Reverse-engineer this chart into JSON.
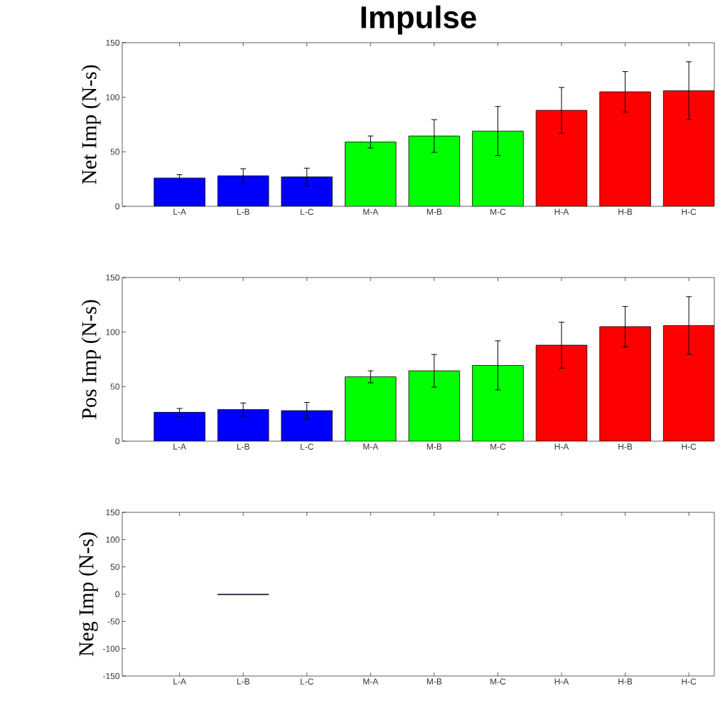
{
  "chart_data": [
    {
      "type": "bar",
      "title": "Impulse",
      "ylabel": "Net Imp (N-s)",
      "categories": [
        "L-A",
        "L-B",
        "L-C",
        "M-A",
        "M-B",
        "M-C",
        "H-A",
        "H-B",
        "H-C"
      ],
      "values": [
        26,
        28,
        27,
        59,
        64.5,
        69,
        88,
        105,
        106
      ],
      "errors": [
        3,
        6.5,
        8,
        5.5,
        15,
        22.5,
        21,
        18.5,
        26.5
      ],
      "colors": [
        "#0000ff",
        "#0000ff",
        "#0000ff",
        "#00ff00",
        "#00ff00",
        "#00ff00",
        "#ff0000",
        "#ff0000",
        "#ff0000"
      ],
      "ylim": [
        0,
        150
      ],
      "yticks": [
        0,
        50,
        100,
        150
      ]
    },
    {
      "type": "bar",
      "ylabel": "Pos Imp (N-s)",
      "categories": [
        "L-A",
        "L-B",
        "L-C",
        "M-A",
        "M-B",
        "M-C",
        "H-A",
        "H-B",
        "H-C"
      ],
      "values": [
        26.5,
        29,
        28,
        59,
        64.5,
        69.5,
        88,
        105,
        106
      ],
      "errors": [
        3.5,
        6,
        7.5,
        5.5,
        15,
        22.5,
        21,
        18.5,
        26.5
      ],
      "colors": [
        "#0000ff",
        "#0000ff",
        "#0000ff",
        "#00ff00",
        "#00ff00",
        "#00ff00",
        "#ff0000",
        "#ff0000",
        "#ff0000"
      ],
      "ylim": [
        0,
        150
      ],
      "yticks": [
        0,
        50,
        100,
        150
      ]
    },
    {
      "type": "bar",
      "ylabel": "Neg Imp (N-s)",
      "categories": [
        "L-A",
        "L-B",
        "L-C",
        "M-A",
        "M-B",
        "M-C",
        "H-A",
        "H-B",
        "H-C"
      ],
      "values": [
        0,
        -1,
        0,
        0,
        0,
        0,
        0,
        0,
        0
      ],
      "colors": [
        "#0000ff",
        "#0000ff",
        "#0000ff",
        "#00ff00",
        "#00ff00",
        "#00ff00",
        "#ff0000",
        "#ff0000",
        "#ff0000"
      ],
      "ylim": [
        -150,
        150
      ],
      "yticks": [
        -150,
        -100,
        -50,
        0,
        50,
        100,
        150
      ]
    }
  ]
}
